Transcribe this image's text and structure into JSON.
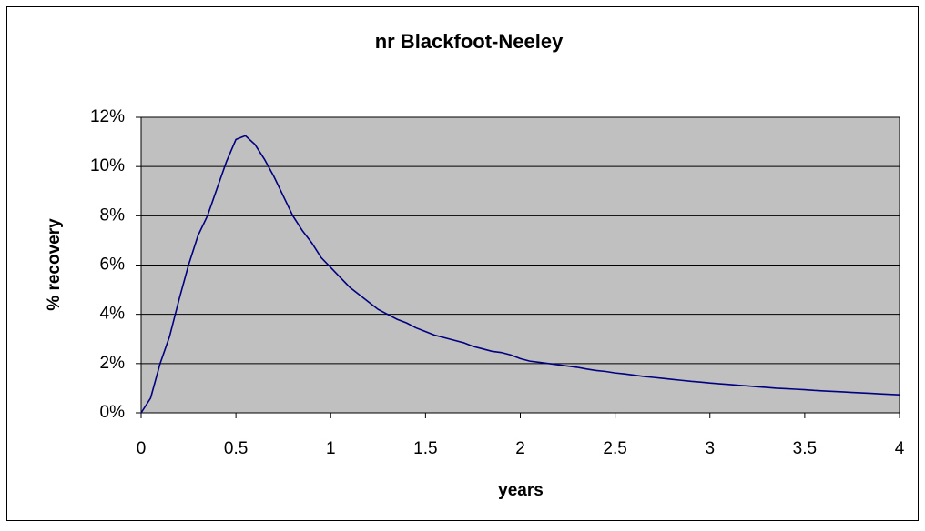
{
  "chart_data": {
    "type": "line",
    "title": "nr Blackfoot-Neeley",
    "x_label": "years",
    "y_label": "% recovery",
    "x": [
      0,
      0.05,
      0.1,
      0.15,
      0.2,
      0.25,
      0.3,
      0.35,
      0.4,
      0.45,
      0.5,
      0.55,
      0.6,
      0.65,
      0.7,
      0.75,
      0.8,
      0.85,
      0.9,
      0.95,
      1,
      1.05,
      1.1,
      1.15,
      1.2,
      1.25,
      1.3,
      1.35,
      1.4,
      1.45,
      1.5,
      1.55,
      1.6,
      1.65,
      1.7,
      1.75,
      1.8,
      1.85,
      1.9,
      1.95,
      2,
      2.05,
      2.1,
      2.15,
      2.2,
      2.25,
      2.3,
      2.35,
      2.4,
      2.45,
      2.5,
      2.55,
      2.6,
      2.65,
      2.7,
      2.75,
      2.8,
      2.85,
      2.9,
      2.95,
      3,
      3.05,
      3.1,
      3.15,
      3.2,
      3.25,
      3.3,
      3.35,
      3.4,
      3.45,
      3.5,
      3.55,
      3.6,
      3.65,
      3.7,
      3.75,
      3.8,
      3.85,
      3.9,
      3.95,
      4
    ],
    "series": [
      {
        "color": "#000080",
        "values": [
          0,
          0.6,
          2.0,
          3.1,
          4.6,
          6.0,
          7.2,
          8.0,
          9.1,
          10.2,
          11.1,
          11.25,
          10.9,
          10.3,
          9.6,
          8.8,
          8.0,
          7.4,
          6.9,
          6.3,
          5.9,
          5.5,
          5.1,
          4.8,
          4.5,
          4.2,
          4.0,
          3.8,
          3.65,
          3.45,
          3.3,
          3.15,
          3.05,
          2.95,
          2.85,
          2.7,
          2.6,
          2.5,
          2.45,
          2.35,
          2.2,
          2.1,
          2.05,
          2.0,
          1.95,
          1.9,
          1.85,
          1.78,
          1.72,
          1.68,
          1.62,
          1.58,
          1.53,
          1.48,
          1.44,
          1.4,
          1.36,
          1.32,
          1.28,
          1.25,
          1.21,
          1.18,
          1.15,
          1.12,
          1.09,
          1.06,
          1.03,
          1.0,
          0.98,
          0.96,
          0.94,
          0.91,
          0.89,
          0.87,
          0.85,
          0.83,
          0.81,
          0.79,
          0.77,
          0.75,
          0.73
        ]
      }
    ],
    "xlim": [
      0,
      4
    ],
    "xticks": [
      0,
      0.5,
      1,
      1.5,
      2,
      2.5,
      3,
      3.5,
      4
    ],
    "ylim": [
      0,
      12
    ],
    "yticks": [
      {
        "value": 0,
        "label": "0%"
      },
      {
        "value": 2,
        "label": "2%"
      },
      {
        "value": 4,
        "label": "4%"
      },
      {
        "value": 6,
        "label": "6%"
      },
      {
        "value": 8,
        "label": "8%"
      },
      {
        "value": 10,
        "label": "10%"
      },
      {
        "value": 12,
        "label": "12%"
      }
    ],
    "grid": true,
    "plot_background": "#c0c0c0"
  }
}
